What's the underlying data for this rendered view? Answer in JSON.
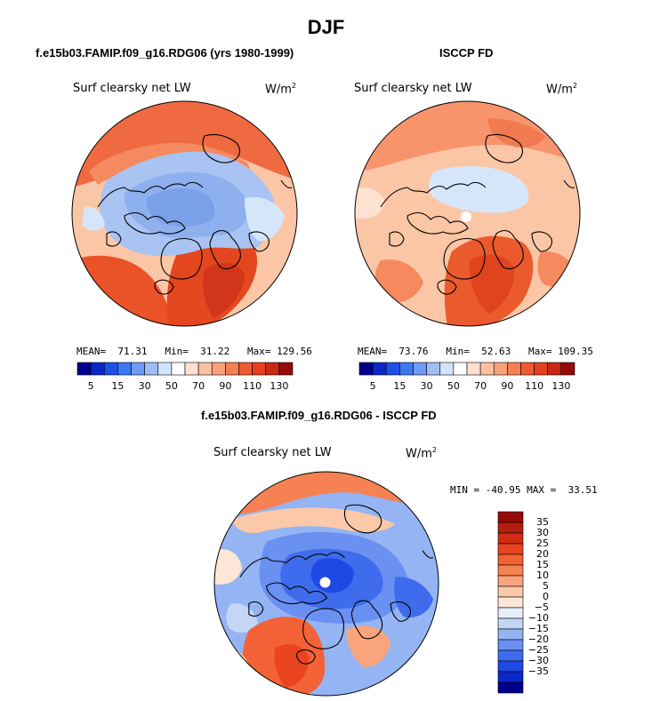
{
  "page": {
    "title": "DJF"
  },
  "panels": [
    {
      "heading": "f.e15b03.FAMIP.f09_g16.RDG06 (yrs 1980-1999)",
      "field_label": "Surf clearsky net LW",
      "units": "W/m",
      "units_exp": "2",
      "stats": "MEAN=  71.31   Min=  31.22   Max= 129.56",
      "colorbar_ticks": [
        "5",
        "15",
        "30",
        "50",
        "70",
        "90",
        "110",
        "130"
      ],
      "colors": [
        "#00008c",
        "#0a28c8",
        "#1e50e6",
        "#3c78f0",
        "#6e9bf5",
        "#a0bef5",
        "#d2e4fa",
        "#ffffff",
        "#fde0cf",
        "#fbc0a0",
        "#f8a078",
        "#f47f53",
        "#ef5a30",
        "#e6401e",
        "#c82814",
        "#960a0a"
      ]
    },
    {
      "heading": "ISCCP FD",
      "field_label": "Surf clearsky net LW",
      "units": "W/m",
      "units_exp": "2",
      "stats": "MEAN=  73.76   Min=  52.63   Max= 109.35",
      "colorbar_ticks": [
        "5",
        "15",
        "30",
        "50",
        "70",
        "90",
        "110",
        "130"
      ],
      "colors": [
        "#00008c",
        "#0a28c8",
        "#1e50e6",
        "#3c78f0",
        "#6e9bf5",
        "#a0bef5",
        "#d2e4fa",
        "#ffffff",
        "#fde0cf",
        "#fbc0a0",
        "#f8a078",
        "#f47f53",
        "#ef5a30",
        "#e6401e",
        "#c82814",
        "#960a0a"
      ]
    },
    {
      "heading": "f.e15b03.FAMIP.f09_g16.RDG06 - ISCCP FD",
      "field_label": "Surf clearsky net LW",
      "units": "W/m",
      "units_exp": "2",
      "stats": "MIN = -40.95 MAX =  33.51",
      "colorbar_ticks": [
        "35",
        "30",
        "25",
        "20",
        "15",
        "10",
        "5",
        "0",
        "−5",
        "−10",
        "−15",
        "−20",
        "−25",
        "−30",
        "−35"
      ],
      "colors": [
        "#960a0a",
        "#b41e0e",
        "#d22d14",
        "#ea4420",
        "#f36236",
        "#f68254",
        "#f9a47c",
        "#fcc8aa",
        "#fee6d6",
        "#e6f0fa",
        "#c4d6f6",
        "#94b4f4",
        "#6a90f2",
        "#3e6cec",
        "#2048e4",
        "#0a28c8",
        "#00008c"
      ]
    }
  ]
}
